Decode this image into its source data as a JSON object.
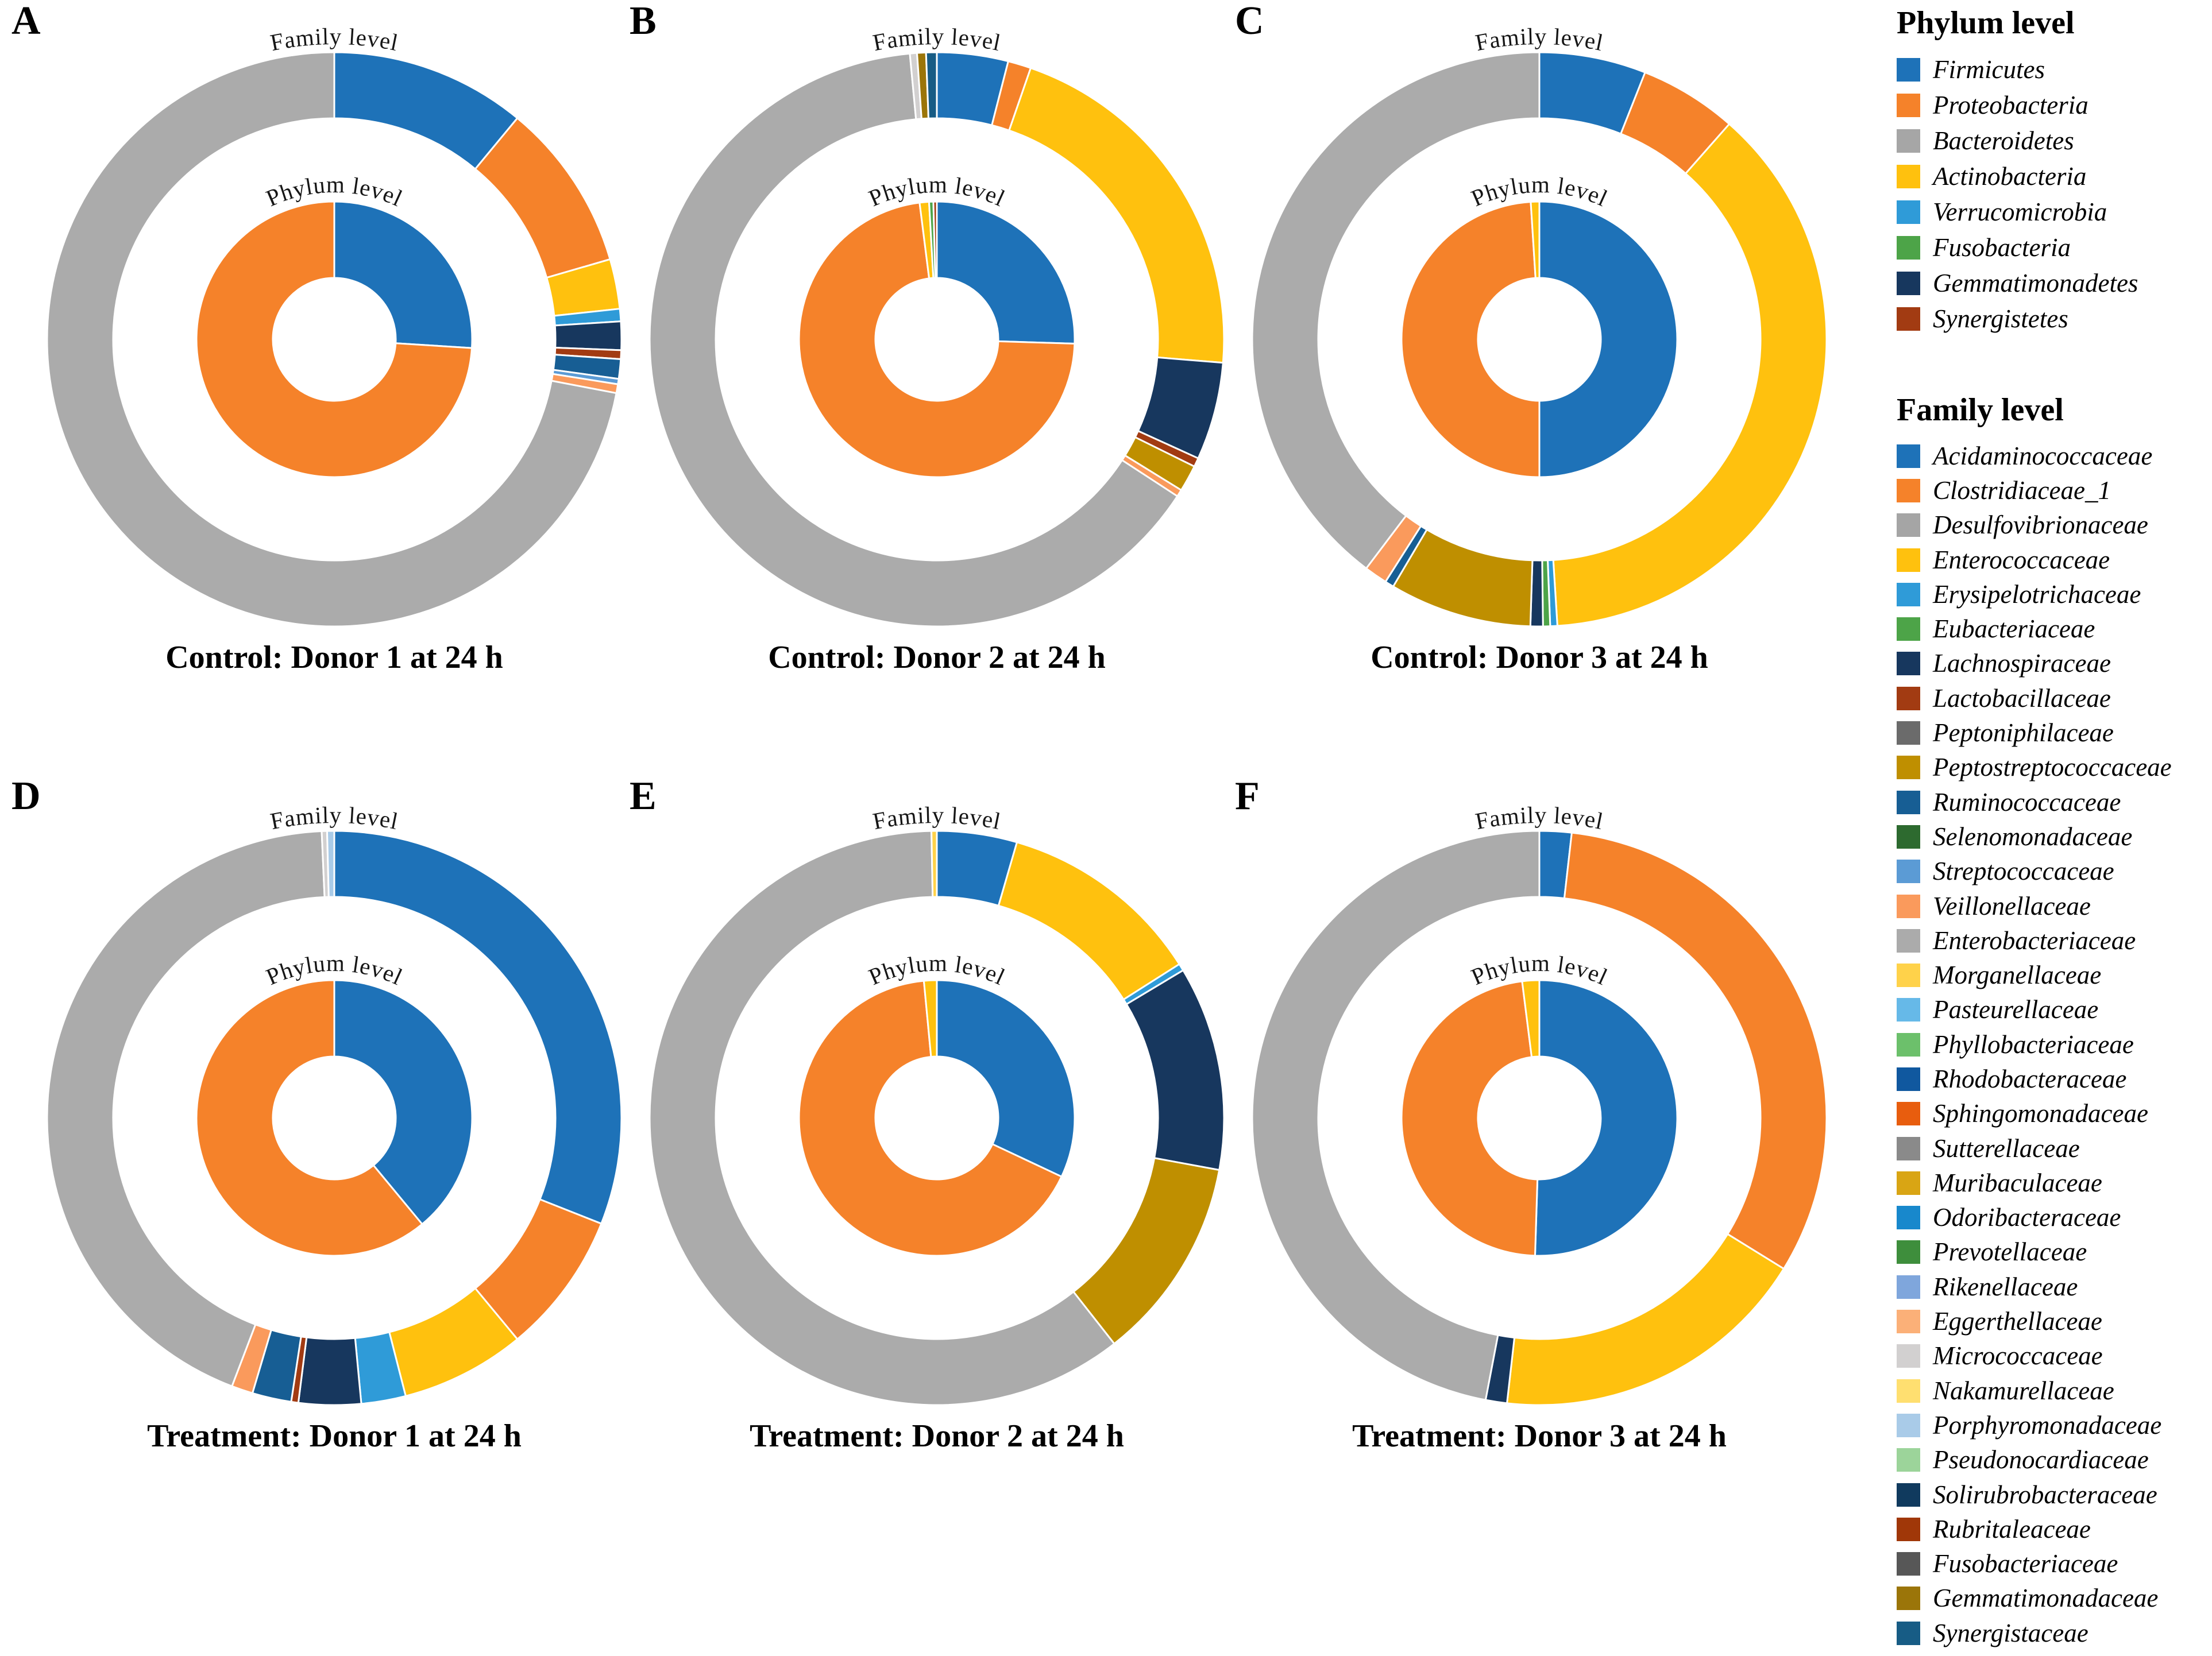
{
  "figure": {
    "panels": [
      "A",
      "B",
      "C",
      "D",
      "E",
      "F"
    ],
    "background": "#ffffff",
    "ring_gap_color": "#ffffff"
  },
  "phylum_legend": {
    "title": "Phylum level",
    "items": [
      {
        "label": "Firmicutes",
        "color": "#1E72B8"
      },
      {
        "label": "Proteobacteria",
        "color": "#F5822A"
      },
      {
        "label": "Bacteroidetes",
        "color": "#A6A6A6"
      },
      {
        "label": "Actinobacteria",
        "color": "#FFC10E"
      },
      {
        "label": "Verrucomicrobia",
        "color": "#2F9BD8"
      },
      {
        "label": "Fusobacteria",
        "color": "#4DA448"
      },
      {
        "label": "Gemmatimonadetes",
        "color": "#17375E"
      },
      {
        "label": "Synergistetes",
        "color": "#A23B12"
      }
    ]
  },
  "family_legend": {
    "title": "Family level",
    "items": [
      {
        "label": "Acidaminococcaceae",
        "color": "#1E72B8"
      },
      {
        "label": "Clostridiaceae_1",
        "color": "#F5822A"
      },
      {
        "label": "Desulfovibrionaceae",
        "color": "#A5A5A5"
      },
      {
        "label": "Enterococcaceae",
        "color": "#FFC10E"
      },
      {
        "label": "Erysipelotrichaceae",
        "color": "#2F9BD8"
      },
      {
        "label": "Eubacteriaceae",
        "color": "#4DA448"
      },
      {
        "label": "Lachnospiraceae",
        "color": "#17375E"
      },
      {
        "label": "Lactobacillaceae",
        "color": "#A23B12"
      },
      {
        "label": "Peptoniphilaceae",
        "color": "#6B6B6B"
      },
      {
        "label": "Peptostreptococcaceae",
        "color": "#BF8F00"
      },
      {
        "label": "Ruminococcaceae",
        "color": "#175E94"
      },
      {
        "label": "Selenomonadaceae",
        "color": "#2D6A2F"
      },
      {
        "label": "Streptococcaceae",
        "color": "#5B9BD5"
      },
      {
        "label": "Veillonellaceae",
        "color": "#FA9A5C"
      },
      {
        "label": "Enterobacteriaceae",
        "color": "#ABABAB"
      },
      {
        "label": "Morganellaceae",
        "color": "#FFD24A"
      },
      {
        "label": "Pasteurellaceae",
        "color": "#66B9E8"
      },
      {
        "label": "Phyllobacteriaceae",
        "color": "#6CC06B"
      },
      {
        "label": "Rhodobacteraceae",
        "color": "#10589F"
      },
      {
        "label": "Sphingomonadaceae",
        "color": "#E85D0E"
      },
      {
        "label": "Sutterellaceae",
        "color": "#8A8A8A"
      },
      {
        "label": "Muribaculaceae",
        "color": "#D9A514"
      },
      {
        "label": "Odoribacteraceae",
        "color": "#1888CC"
      },
      {
        "label": "Prevotellaceae",
        "color": "#3E8E3C"
      },
      {
        "label": "Rikenellaceae",
        "color": "#7FA6DC"
      },
      {
        "label": "Eggerthellaceae",
        "color": "#FBB078"
      },
      {
        "label": "Micrococcaceae",
        "color": "#D2D0D0"
      },
      {
        "label": "Nakamurellaceae",
        "color": "#FFDF70"
      },
      {
        "label": "Porphyromonadaceae",
        "color": "#A9CBE8"
      },
      {
        "label": "Pseudonocardiaceae",
        "color": "#9CD49A"
      },
      {
        "label": "Solirubrobacteraceae",
        "color": "#103A5E"
      },
      {
        "label": "Rubritaleaceae",
        "color": "#A03708"
      },
      {
        "label": "Fusobacteriaceae",
        "color": "#575757"
      },
      {
        "label": "Gemmatimonadaceae",
        "color": "#9B7509"
      },
      {
        "label": "Synergistaceae",
        "color": "#175C85"
      }
    ]
  },
  "chart_data": [
    {
      "panel": "A",
      "type": "pie",
      "title": "Control: Donor 1 at 24 h",
      "outer_ring_label": "Family level",
      "inner_ring_label": "Phylum level",
      "inner_ring_phylum_pct": {
        "Firmicutes": 26,
        "Proteobacteria": 74
      },
      "outer_ring_family_pct": {
        "Acidaminococcaceae": 11.0,
        "Clostridiaceae_1": 9.5,
        "Enterococcaceae": 2.8,
        "Erysipelotrichaceae": 0.7,
        "Lachnospiraceae": 1.6,
        "Lactobacillaceae": 0.5,
        "Ruminococcaceae": 1.1,
        "Streptococcaceae": 0.3,
        "Veillonellaceae": 0.5,
        "Enterobacteriaceae": 72.0
      }
    },
    {
      "panel": "B",
      "type": "pie",
      "title": "Control: Donor 2 at 24 h",
      "outer_ring_label": "Family level",
      "inner_ring_label": "Phylum level",
      "inner_ring_phylum_pct": {
        "Firmicutes": 25.5,
        "Proteobacteria": 72.5,
        "Actinobacteria": 1.1,
        "Fusobacteria": 0.5,
        "Synergistetes": 0.4
      },
      "outer_ring_family_pct": {
        "Acidaminococcaceae": 4.0,
        "Clostridiaceae_1": 1.3,
        "Enterococcaceae": 21.0,
        "Lachnospiraceae": 5.5,
        "Lactobacillaceae": 0.5,
        "Peptostreptococcaceae": 1.5,
        "Veillonellaceae": 0.4,
        "Enterobacteriaceae": 64.3,
        "Micrococcaceae": 0.4,
        "Gemmatimonadaceae": 0.5,
        "Synergistaceae": 0.6
      }
    },
    {
      "panel": "C",
      "type": "pie",
      "title": "Control: Donor 3 at 24 h",
      "outer_ring_label": "Family level",
      "inner_ring_label": "Phylum level",
      "inner_ring_phylum_pct": {
        "Firmicutes": 50,
        "Proteobacteria": 49,
        "Actinobacteria": 1
      },
      "outer_ring_family_pct": {
        "Acidaminococcaceae": 6.0,
        "Clostridiaceae_1": 5.5,
        "Enterococcaceae": 37.5,
        "Erysipelotrichaceae": 0.4,
        "Eubacteriaceae": 0.4,
        "Lachnospiraceae": 0.7,
        "Peptostreptococcaceae": 8.0,
        "Ruminococcaceae": 0.5,
        "Veillonellaceae": 1.3,
        "Enterobacteriaceae": 39.7
      }
    },
    {
      "panel": "D",
      "type": "pie",
      "title": "Treatment: Donor 1 at 24 h",
      "outer_ring_label": "Family level",
      "inner_ring_label": "Phylum level",
      "inner_ring_phylum_pct": {
        "Firmicutes": 39,
        "Proteobacteria": 61
      },
      "outer_ring_family_pct": {
        "Acidaminococcaceae": 31.0,
        "Clostridiaceae_1": 8.0,
        "Enterococcaceae": 7.0,
        "Erysipelotrichaceae": 2.5,
        "Lachnospiraceae": 3.5,
        "Lactobacillaceae": 0.4,
        "Ruminococcaceae": 2.2,
        "Veillonellaceae": 1.2,
        "Enterobacteriaceae": 43.5,
        "Micrococcaceae": 0.3,
        "Porphyromonadaceae": 0.4
      }
    },
    {
      "panel": "E",
      "type": "pie",
      "title": "Treatment: Donor 2 at 24 h",
      "outer_ring_label": "Family level",
      "inner_ring_label": "Phylum level",
      "inner_ring_phylum_pct": {
        "Firmicutes": 32,
        "Proteobacteria": 66.5,
        "Actinobacteria": 1.5
      },
      "outer_ring_family_pct": {
        "Acidaminococcaceae": 4.5,
        "Enterococcaceae": 11.5,
        "Erysipelotrichaceae": 0.4,
        "Lachnospiraceae": 11.5,
        "Peptostreptococcaceae": 11.5,
        "Enterobacteriaceae": 60.3,
        "Morganellaceae": 0.3
      }
    },
    {
      "panel": "F",
      "type": "pie",
      "title": "Treatment: Donor 3 at 24 h",
      "outer_ring_label": "Family level",
      "inner_ring_label": "Phylum level",
      "inner_ring_phylum_pct": {
        "Firmicutes": 50.5,
        "Proteobacteria": 47.5,
        "Actinobacteria": 2
      },
      "outer_ring_family_pct": {
        "Acidaminococcaceae": 1.8,
        "Clostridiaceae_1": 32.0,
        "Enterococcaceae": 18.0,
        "Lachnospiraceae": 1.2,
        "Enterobacteriaceae": 47.0
      }
    }
  ]
}
